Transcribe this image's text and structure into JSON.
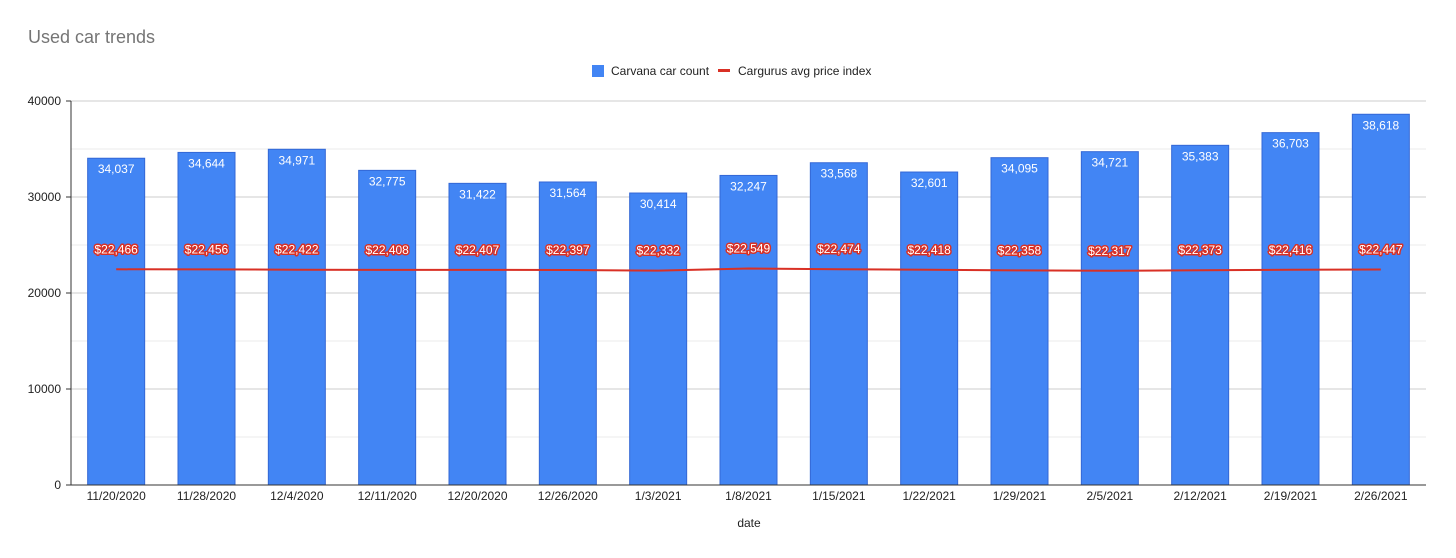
{
  "chart_data": {
    "type": "bar",
    "title": "Used car trends",
    "xlabel": "date",
    "ylabel": "",
    "ylim": [
      0,
      40000
    ],
    "yticks": [
      "0",
      "10000",
      "20000",
      "30000",
      "40000"
    ],
    "grid": true,
    "legend_position": "top",
    "categories": [
      "11/20/2020",
      "11/28/2020",
      "12/4/2020",
      "12/11/2020",
      "12/20/2020",
      "12/26/2020",
      "1/3/2021",
      "1/8/2021",
      "1/15/2021",
      "1/22/2021",
      "1/29/2021",
      "2/5/2021",
      "2/12/2021",
      "2/19/2021",
      "2/26/2021"
    ],
    "series": [
      {
        "name": "Carvana car count",
        "type": "bar",
        "color": "#4285f4",
        "values": [
          34037,
          34644,
          34971,
          32775,
          31422,
          31564,
          30414,
          32247,
          33568,
          32601,
          34095,
          34721,
          35383,
          36703,
          38618
        ],
        "labels": [
          "34,037",
          "34,644",
          "34,971",
          "32,775",
          "31,422",
          "31,564",
          "30,414",
          "32,247",
          "33,568",
          "32,601",
          "34,095",
          "34,721",
          "35,383",
          "36,703",
          "38,618"
        ]
      },
      {
        "name": "Cargurus avg price index",
        "type": "line",
        "color": "#d93025",
        "values": [
          22466,
          22456,
          22422,
          22408,
          22407,
          22397,
          22332,
          22549,
          22474,
          22418,
          22358,
          22317,
          22373,
          22416,
          22447
        ],
        "labels": [
          "$22,466",
          "$22,456",
          "$22,422",
          "$22,408",
          "$22,407",
          "$22,397",
          "$22,332",
          "$22,549",
          "$22,474",
          "$22,418",
          "$22,358",
          "$22,317",
          "$22,373",
          "$22,416",
          "$22,447"
        ]
      }
    ]
  }
}
